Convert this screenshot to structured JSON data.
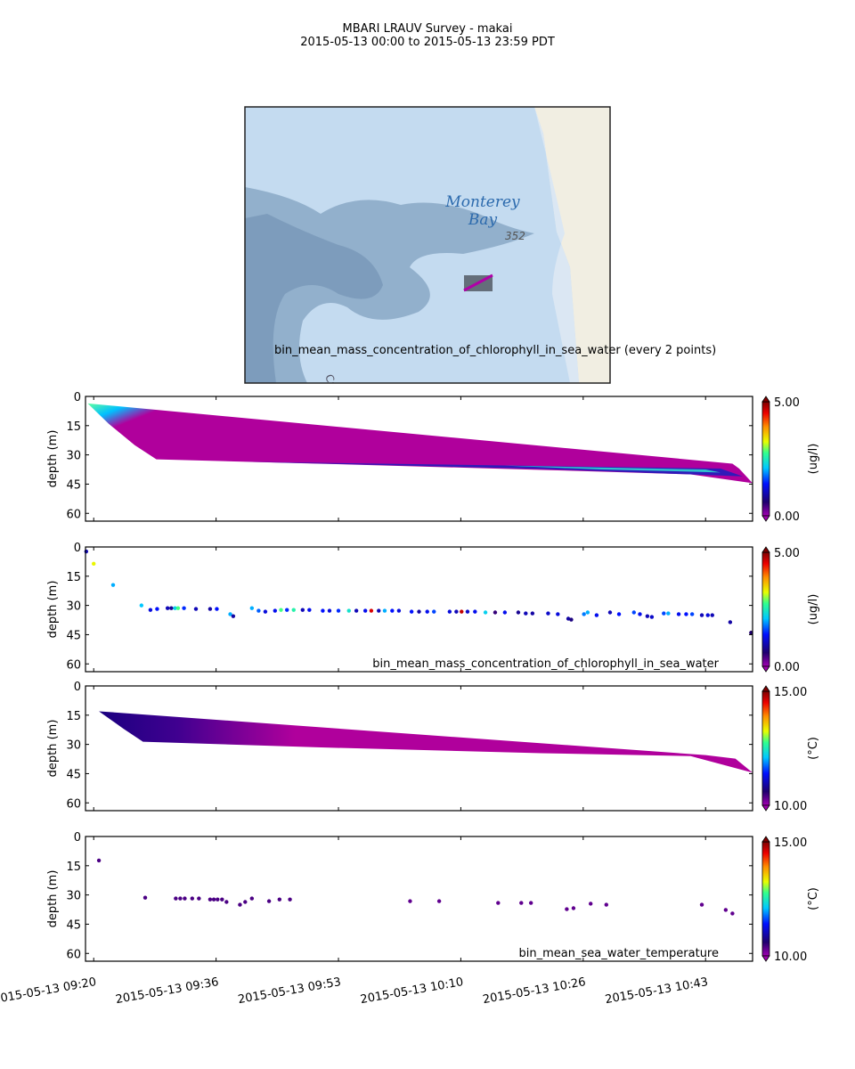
{
  "title": {
    "line1": "MBARI LRAUV Survey - makai",
    "line2": "2015-05-13 00:00  to  2015-05-13 23:59 PDT"
  },
  "map": {
    "place_label_1": "Monterey",
    "place_label_2": "Bay",
    "depth_label": "352",
    "partial_label": "Ca",
    "track_color": "#b000a8",
    "caption": "bin_mean_mass_concentration_of_chlorophyll_in_sea_water (every 2 points)"
  },
  "colors": {
    "section_high_depth": "#b0009c"
  },
  "chart_data": [
    {
      "type": "heatmap",
      "name": "chlorophyll-section",
      "ylabel": "depth (m)",
      "ylim": [
        64,
        0
      ],
      "yticks": [
        "0",
        "15",
        "30",
        "45",
        "60"
      ],
      "xlim_minutes_since_0920": [
        -1.1,
        88.3
      ],
      "colorbar": {
        "min": "0.00",
        "max": "5.00",
        "label": "(ug/l)",
        "range": [
          0,
          5
        ]
      },
      "section_outline": {
        "top": [
          [
            -0.8,
            3.6
          ],
          [
            85.6,
            34.5
          ],
          [
            86.5,
            37
          ],
          [
            88.3,
            44.5
          ]
        ],
        "bottom": [
          [
            -0.8,
            3.6
          ],
          [
            2,
            14
          ],
          [
            5.5,
            25
          ],
          [
            8.4,
            32.3
          ],
          [
            30,
            34.5
          ],
          [
            60,
            37.7
          ],
          [
            80,
            40
          ],
          [
            88.3,
            44.5
          ]
        ]
      }
    },
    {
      "type": "scatter",
      "name": "chlorophyll-points",
      "label": "bin_mean_mass_concentration_of_chlorophyll_in_sea_water",
      "ylabel": "depth (m)",
      "ylim": [
        64,
        0
      ],
      "yticks": [
        "0",
        "15",
        "30",
        "45",
        "60"
      ],
      "colorbar": {
        "min": "0.00",
        "max": "5.00",
        "label": "(ug/l)",
        "range": [
          0,
          5
        ]
      },
      "points_minute_depth_value": [
        [
          -1.0,
          2.3,
          1.0
        ],
        [
          0.0,
          8.6,
          3.3
        ],
        [
          2.6,
          19.5,
          2.0
        ],
        [
          6.4,
          30,
          2.1
        ],
        [
          7.6,
          32.3,
          1.2
        ],
        [
          8.5,
          31.8,
          1.4
        ],
        [
          9.9,
          31.4,
          1.0
        ],
        [
          10.4,
          31.4,
          0.8
        ],
        [
          10.9,
          31.4,
          2.2
        ],
        [
          11.3,
          31.4,
          2.8
        ],
        [
          12.1,
          31.4,
          1.5
        ],
        [
          13.7,
          31.8,
          1.0
        ],
        [
          15.6,
          31.8,
          0.9
        ],
        [
          16.5,
          31.8,
          1.4
        ],
        [
          18.3,
          34.5,
          2.0
        ],
        [
          18.7,
          35.5,
          0.9
        ],
        [
          21.2,
          31.4,
          2.0
        ],
        [
          22.1,
          32.7,
          1.7
        ],
        [
          23.0,
          33.2,
          1.2
        ],
        [
          24.3,
          32.7,
          1.3
        ],
        [
          25.1,
          32.3,
          2.8
        ],
        [
          25.9,
          32.3,
          1.5
        ],
        [
          26.8,
          32.3,
          2.6
        ],
        [
          28.0,
          32.3,
          1.0
        ],
        [
          28.9,
          32.3,
          1.3
        ],
        [
          30.7,
          32.7,
          1.4
        ],
        [
          31.6,
          32.7,
          1.2
        ],
        [
          32.8,
          32.7,
          1.5
        ],
        [
          34.2,
          32.7,
          2.4
        ],
        [
          35.2,
          32.7,
          1.0
        ],
        [
          36.4,
          32.7,
          1.3
        ],
        [
          37.2,
          32.7,
          4.6
        ],
        [
          38.2,
          32.7,
          1.0
        ],
        [
          39.0,
          32.7,
          2.0
        ],
        [
          40.0,
          32.7,
          1.4
        ],
        [
          40.9,
          32.7,
          1.2
        ],
        [
          42.6,
          33.2,
          1.4
        ],
        [
          43.6,
          33.2,
          0.9
        ],
        [
          44.7,
          33.2,
          1.3
        ],
        [
          45.6,
          33.2,
          1.6
        ],
        [
          47.7,
          33.2,
          1.2
        ],
        [
          48.6,
          33.2,
          1.0
        ],
        [
          49.3,
          33.2,
          4.7
        ],
        [
          50.1,
          33.2,
          1.1
        ],
        [
          51.1,
          33.2,
          1.3
        ],
        [
          52.5,
          33.6,
          2.2
        ],
        [
          53.8,
          33.6,
          0.5
        ],
        [
          55.1,
          33.6,
          1.3
        ],
        [
          56.9,
          33.6,
          0.8
        ],
        [
          57.9,
          34.1,
          1.0
        ],
        [
          58.8,
          34.1,
          0.9
        ],
        [
          60.9,
          34.1,
          1.1
        ],
        [
          62.2,
          34.5,
          1.2
        ],
        [
          63.6,
          36.8,
          0.9
        ],
        [
          64.0,
          37.3,
          0.7
        ],
        [
          65.7,
          34.5,
          1.8
        ],
        [
          66.2,
          33.6,
          2.0
        ],
        [
          67.4,
          35.0,
          1.3
        ],
        [
          69.2,
          33.6,
          1.0
        ],
        [
          70.4,
          34.5,
          1.4
        ],
        [
          72.4,
          33.6,
          1.6
        ],
        [
          73.2,
          34.5,
          1.3
        ],
        [
          74.2,
          35.5,
          1.0
        ],
        [
          74.8,
          35.9,
          1.1
        ],
        [
          76.4,
          34.1,
          1.6
        ],
        [
          77.0,
          34.1,
          2.0
        ],
        [
          78.4,
          34.5,
          1.3
        ],
        [
          79.4,
          34.5,
          1.4
        ],
        [
          80.2,
          34.5,
          1.6
        ],
        [
          81.5,
          35.0,
          1.0
        ],
        [
          82.3,
          35.0,
          1.2
        ],
        [
          82.9,
          35.0,
          1.0
        ],
        [
          85.3,
          38.6,
          0.9
        ],
        [
          88.1,
          44.0,
          0.6
        ]
      ]
    },
    {
      "type": "heatmap",
      "name": "temperature-section",
      "ylabel": "depth (m)",
      "ylim": [
        64,
        0
      ],
      "yticks": [
        "0",
        "15",
        "30",
        "45",
        "60"
      ],
      "colorbar": {
        "min": "10.00",
        "max": "15.00",
        "label": "(°C)",
        "range": [
          10,
          15
        ]
      },
      "section_outline": {
        "top": [
          [
            0.7,
            13
          ],
          [
            82,
            35.5
          ],
          [
            86,
            37.3
          ],
          [
            88.3,
            44.5
          ]
        ],
        "bottom": [
          [
            0.7,
            13
          ],
          [
            4,
            22
          ],
          [
            6.6,
            28.6
          ],
          [
            30,
            31.5
          ],
          [
            60,
            34.5
          ],
          [
            80,
            36
          ],
          [
            88.3,
            44.5
          ]
        ]
      }
    },
    {
      "type": "scatter",
      "name": "temperature-points",
      "label": "bin_mean_sea_water_temperature",
      "ylabel": "depth (m)",
      "ylim": [
        64,
        0
      ],
      "yticks": [
        "0",
        "15",
        "30",
        "45",
        "60"
      ],
      "colorbar": {
        "min": "10.00",
        "max": "15.00",
        "label": "(°C)",
        "range": [
          10,
          15
        ]
      },
      "points_minute_depth_value": [
        [
          0.7,
          12.3,
          10.4
        ],
        [
          6.9,
          31.4,
          10.4
        ],
        [
          11.0,
          31.8,
          10.4
        ],
        [
          11.6,
          31.8,
          10.4
        ],
        [
          12.2,
          31.8,
          10.4
        ],
        [
          13.2,
          31.8,
          10.4
        ],
        [
          14.1,
          31.8,
          10.4
        ],
        [
          15.6,
          32.3,
          10.4
        ],
        [
          16.1,
          32.3,
          10.4
        ],
        [
          16.6,
          32.3,
          10.4
        ],
        [
          17.2,
          32.3,
          10.4
        ],
        [
          17.8,
          33.6,
          10.4
        ],
        [
          19.6,
          35.0,
          10.4
        ],
        [
          20.3,
          33.6,
          10.4
        ],
        [
          21.2,
          31.8,
          10.4
        ],
        [
          23.5,
          33.2,
          10.4
        ],
        [
          24.9,
          32.3,
          10.4
        ],
        [
          26.3,
          32.3,
          10.4
        ],
        [
          42.4,
          33.2,
          10.3
        ],
        [
          46.3,
          33.2,
          10.3
        ],
        [
          54.2,
          34.1,
          10.3
        ],
        [
          57.3,
          34.1,
          10.3
        ],
        [
          58.6,
          34.1,
          10.3
        ],
        [
          63.4,
          37.3,
          10.3
        ],
        [
          64.3,
          36.8,
          10.3
        ],
        [
          66.6,
          34.5,
          10.3
        ],
        [
          68.7,
          35.0,
          10.3
        ],
        [
          81.5,
          35.0,
          10.3
        ],
        [
          84.7,
          37.7,
          10.3
        ],
        [
          85.6,
          39.5,
          10.3
        ]
      ]
    }
  ],
  "xaxis": {
    "tick_labels": [
      "2015-05-13 09:20",
      "2015-05-13 09:36",
      "2015-05-13 09:53",
      "2015-05-13 10:10",
      "2015-05-13 10:26",
      "2015-05-13 10:43"
    ],
    "tick_minutes": [
      0,
      16.4,
      32.8,
      49.2,
      65.6,
      82.0
    ]
  }
}
